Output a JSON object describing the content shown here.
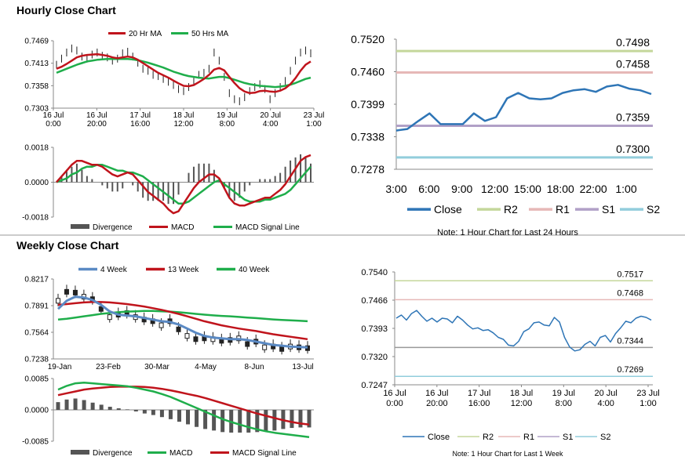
{
  "sections": {
    "hourly_title": "Hourly Close Chart",
    "weekly_title": "Weekly Close Chart"
  },
  "colors": {
    "red": "#c0141c",
    "green": "#1fae4b",
    "blue": "#2e75b6",
    "steelblue": "#5b8ac4",
    "gray": "#555555",
    "r2": "#c4d79b",
    "r1": "#e6b8b7",
    "s1": "#b1a0c7",
    "s2": "#92cddc"
  },
  "chart_data": [
    {
      "id": "hourly_price",
      "type": "line",
      "title": "",
      "ylim": [
        0.7303,
        0.7469
      ],
      "yticks": [
        "0.7469",
        "0.7413",
        "0.7358",
        "0.7303"
      ],
      "xticks": [
        [
          "16 Jul",
          "0:00"
        ],
        [
          "16 Jul",
          "20:00"
        ],
        [
          "17 Jul",
          "16:00"
        ],
        [
          "18 Jul",
          "12:00"
        ],
        [
          "19 Jul",
          "8:00"
        ],
        [
          "20 Jul",
          "4:00"
        ],
        [
          "23 Jul",
          "1:00"
        ]
      ],
      "legend": [
        "20 Hr MA",
        "50 Hrs MA"
      ],
      "series": [
        {
          "name": "Price",
          "values": [
            0.741,
            0.7425,
            0.744,
            0.745,
            0.7445,
            0.743,
            0.7425,
            0.7435,
            0.744,
            0.7432,
            0.7428,
            0.742,
            0.7425,
            0.7438,
            0.7442,
            0.743,
            0.7415,
            0.74,
            0.7395,
            0.7385,
            0.7382,
            0.7375,
            0.7368,
            0.736,
            0.735,
            0.7345,
            0.7355,
            0.737,
            0.7385,
            0.739,
            0.74,
            0.744,
            0.742,
            0.738,
            0.734,
            0.7325,
            0.732,
            0.733,
            0.7345,
            0.7355,
            0.7362,
            0.735,
            0.7325,
            0.734,
            0.7355,
            0.737,
            0.7395,
            0.742,
            0.744,
            0.7445,
            0.7438
          ]
        },
        {
          "name": "20 Hr MA",
          "values": [
            0.74,
            0.7405,
            0.7412,
            0.742,
            0.7428,
            0.7432,
            0.7434,
            0.7435,
            0.7436,
            0.7434,
            0.7432,
            0.7428,
            0.7426,
            0.7428,
            0.743,
            0.7428,
            0.7422,
            0.7414,
            0.7406,
            0.7398,
            0.739,
            0.7384,
            0.7378,
            0.7371,
            0.7364,
            0.7358,
            0.7357,
            0.736,
            0.7367,
            0.7375,
            0.7385,
            0.7398,
            0.7402,
            0.7396,
            0.738,
            0.7365,
            0.7352,
            0.7344,
            0.734,
            0.7341,
            0.7345,
            0.7346,
            0.7344,
            0.7343,
            0.7346,
            0.7352,
            0.7362,
            0.7377,
            0.7395,
            0.741,
            0.7418
          ]
        },
        {
          "name": "50 Hrs MA",
          "values": [
            0.739,
            0.7395,
            0.74,
            0.7405,
            0.741,
            0.7414,
            0.7418,
            0.742,
            0.7422,
            0.7423,
            0.7424,
            0.7424,
            0.7424,
            0.7424,
            0.7424,
            0.7423,
            0.7421,
            0.7418,
            0.7415,
            0.7411,
            0.7407,
            0.7403,
            0.7398,
            0.7393,
            0.7389,
            0.7385,
            0.7382,
            0.738,
            0.7378,
            0.7377,
            0.7376,
            0.7378,
            0.738,
            0.738,
            0.7377,
            0.7373,
            0.7369,
            0.7365,
            0.7362,
            0.736,
            0.7358,
            0.7357,
            0.7356,
            0.7355,
            0.7356,
            0.7358,
            0.7361,
            0.7365,
            0.737,
            0.7375,
            0.7378
          ]
        }
      ]
    },
    {
      "id": "hourly_macd",
      "type": "line",
      "ylim": [
        -0.0018,
        0.0018
      ],
      "yticks": [
        "0.0018",
        "0.0000",
        "-0.0018"
      ],
      "legend": [
        "Divergence",
        "MACD",
        "MACD Signal Line"
      ],
      "series": [
        {
          "name": "MACD",
          "values": [
            0.0,
            0.0003,
            0.0006,
            0.0009,
            0.0011,
            0.0011,
            0.001,
            0.0009,
            0.0009,
            0.0008,
            0.0006,
            0.0004,
            0.0003,
            0.0004,
            0.0005,
            0.0004,
            0.0001,
            -0.0002,
            -0.0005,
            -0.0007,
            -0.0009,
            -0.0011,
            -0.0014,
            -0.0016,
            -0.0015,
            -0.0011,
            -0.0007,
            -0.0003,
            0.0,
            0.0002,
            0.0004,
            0.0004,
            0.0002,
            -0.0003,
            -0.0008,
            -0.0011,
            -0.0012,
            -0.0012,
            -0.0011,
            -0.001,
            -0.0009,
            -0.0008,
            -0.0008,
            -0.0006,
            -0.0004,
            -0.0001,
            0.0003,
            0.0007,
            0.0011,
            0.0013,
            0.0014
          ]
        },
        {
          "name": "MACD Signal Line",
          "values": [
            0.0,
            0.0001,
            0.0002,
            0.0004,
            0.0005,
            0.0007,
            0.0008,
            0.0008,
            0.0009,
            0.0009,
            0.0008,
            0.0007,
            0.0006,
            0.0006,
            0.0005,
            0.0005,
            0.0004,
            0.0003,
            0.0001,
            -0.0001,
            -0.0003,
            -0.0005,
            -0.0007,
            -0.0009,
            -0.0011,
            -0.0011,
            -0.001,
            -0.0008,
            -0.0006,
            -0.0004,
            -0.0002,
            0.0,
            0.0001,
            -0.0001,
            -0.0003,
            -0.0005,
            -0.0007,
            -0.0009,
            -0.001,
            -0.001,
            -0.001,
            -0.0009,
            -0.0009,
            -0.0008,
            -0.0007,
            -0.0006,
            -0.0004,
            -0.0001,
            0.0002,
            0.0005,
            0.0008
          ]
        }
      ]
    },
    {
      "id": "hourly_24h",
      "type": "line",
      "ylim": [
        0.7278,
        0.752
      ],
      "yticks": [
        "0.7520",
        "0.7460",
        "0.7399",
        "0.7338",
        "0.7278"
      ],
      "xticks": [
        "3:00",
        "6:00",
        "9:00",
        "12:00",
        "15:00",
        "18:00",
        "22:00",
        "1:00"
      ],
      "levels": [
        {
          "name": "R2",
          "value": 0.7498,
          "label": "0.7498"
        },
        {
          "name": "R1",
          "value": 0.7458,
          "label": "0.7458"
        },
        {
          "name": "S1",
          "value": 0.7359,
          "label": "0.7359"
        },
        {
          "name": "S2",
          "value": 0.73,
          "label": "0.7300"
        }
      ],
      "series": [
        {
          "name": "Close",
          "values": [
            0.735,
            0.7353,
            0.7368,
            0.7382,
            0.7362,
            0.7362,
            0.7362,
            0.7382,
            0.7368,
            0.7375,
            0.741,
            0.742,
            0.741,
            0.7408,
            0.741,
            0.742,
            0.7425,
            0.7427,
            0.7422,
            0.7432,
            0.7435,
            0.7428,
            0.7425,
            0.7418
          ]
        }
      ],
      "legend": [
        "Close",
        "R2",
        "R1",
        "S1",
        "S2"
      ],
      "note": "Note: 1 Hour Chart for Last 24 Hours"
    },
    {
      "id": "weekly_price",
      "type": "line",
      "ylim": [
        0.7238,
        0.8217
      ],
      "yticks": [
        "0.8217",
        "0.7891",
        "0.7564",
        "0.7238"
      ],
      "xticks": [
        "19-Jan",
        "23-Feb",
        "30-Mar",
        "4-May",
        "8-Jun",
        "13-Jul"
      ],
      "legend": [
        "4 Week",
        "13 Week",
        "40 Week"
      ],
      "series": [
        {
          "name": "Price",
          "values": [
            0.795,
            0.806,
            0.805,
            0.8,
            0.797,
            0.785,
            0.775,
            0.778,
            0.78,
            0.775,
            0.772,
            0.77,
            0.765,
            0.77,
            0.76,
            0.752,
            0.748,
            0.749,
            0.748,
            0.746,
            0.747,
            0.749,
            0.742,
            0.745,
            0.738,
            0.739,
            0.736,
            0.739,
            0.738,
            0.737
          ]
        },
        {
          "name": "4 Week",
          "values": [
            0.785,
            0.795,
            0.8,
            0.799,
            0.796,
            0.79,
            0.782,
            0.778,
            0.777,
            0.776,
            0.774,
            0.772,
            0.77,
            0.769,
            0.766,
            0.761,
            0.756,
            0.752,
            0.75,
            0.749,
            0.748,
            0.748,
            0.747,
            0.745,
            0.743,
            0.741,
            0.74,
            0.739,
            0.7385,
            0.738
          ]
        },
        {
          "name": "13 Week",
          "values": [
            0.79,
            0.791,
            0.792,
            0.793,
            0.7935,
            0.7935,
            0.793,
            0.792,
            0.791,
            0.7895,
            0.788,
            0.786,
            0.784,
            0.7815,
            0.779,
            0.776,
            0.773,
            0.77,
            0.7675,
            0.765,
            0.763,
            0.761,
            0.7595,
            0.758,
            0.756,
            0.754,
            0.7525,
            0.751,
            0.7495,
            0.748
          ]
        },
        {
          "name": "40 Week",
          "values": [
            0.772,
            0.773,
            0.7745,
            0.776,
            0.7775,
            0.779,
            0.78,
            0.781,
            0.7818,
            0.7822,
            0.7825,
            0.7825,
            0.7822,
            0.7818,
            0.781,
            0.78,
            0.779,
            0.778,
            0.7772,
            0.7765,
            0.776,
            0.7752,
            0.7745,
            0.7738,
            0.773,
            0.7722,
            0.7715,
            0.771,
            0.7705,
            0.77
          ]
        }
      ]
    },
    {
      "id": "weekly_macd",
      "type": "line",
      "ylim": [
        -0.0085,
        0.0085
      ],
      "yticks": [
        "0.0085",
        "0.0000",
        "-0.0085"
      ],
      "legend": [
        "Divergence",
        "MACD",
        "MACD Signal Line"
      ],
      "series": [
        {
          "name": "MACD",
          "values": [
            0.0055,
            0.0065,
            0.0072,
            0.0074,
            0.0072,
            0.007,
            0.0068,
            0.0066,
            0.0064,
            0.006,
            0.0055,
            0.005,
            0.0043,
            0.0035,
            0.0025,
            0.0015,
            0.0005,
            -0.0005,
            -0.0015,
            -0.0025,
            -0.0033,
            -0.004,
            -0.0047,
            -0.0053,
            -0.0058,
            -0.0062,
            -0.0065,
            -0.0068,
            -0.0071,
            -0.0074
          ]
        },
        {
          "name": "MACD Signal Line",
          "values": [
            0.004,
            0.0045,
            0.005,
            0.0055,
            0.0058,
            0.006,
            0.0062,
            0.0063,
            0.0063,
            0.0063,
            0.0062,
            0.006,
            0.0057,
            0.0053,
            0.0048,
            0.0043,
            0.0038,
            0.0032,
            0.0025,
            0.0018,
            0.0011,
            0.0004,
            -0.0003,
            -0.001,
            -0.0016,
            -0.0022,
            -0.0028,
            -0.0033,
            -0.0037,
            -0.004
          ]
        }
      ]
    },
    {
      "id": "weekly_1w",
      "type": "line",
      "ylim": [
        0.7247,
        0.754
      ],
      "yticks": [
        "0.7540",
        "0.7466",
        "0.7393",
        "0.7320",
        "0.7247"
      ],
      "xticks": [
        [
          "16 Jul",
          "0:00"
        ],
        [
          "16 Jul",
          "20:00"
        ],
        [
          "17 Jul",
          "16:00"
        ],
        [
          "18 Jul",
          "12:00"
        ],
        [
          "19 Jul",
          "8:00"
        ],
        [
          "20 Jul",
          "4:00"
        ],
        [
          "23 Jul",
          "1:00"
        ]
      ],
      "levels": [
        {
          "name": "R2",
          "value": 0.7517,
          "label": "0.7517"
        },
        {
          "name": "R1",
          "value": 0.7468,
          "label": "0.7468"
        },
        {
          "name": "S1",
          "value": 0.7344,
          "label": "0.7344"
        },
        {
          "name": "S2",
          "value": 0.7269,
          "label": "0.7269"
        }
      ],
      "series": [
        {
          "name": "Close",
          "values": [
            0.742,
            0.7428,
            0.7415,
            0.7432,
            0.744,
            0.7425,
            0.7412,
            0.742,
            0.741,
            0.742,
            0.7418,
            0.7408,
            0.7425,
            0.7415,
            0.7402,
            0.7392,
            0.7395,
            0.7388,
            0.739,
            0.7382,
            0.737,
            0.7365,
            0.735,
            0.7348,
            0.736,
            0.7385,
            0.7392,
            0.7408,
            0.741,
            0.7402,
            0.74,
            0.7422,
            0.741,
            0.737,
            0.7345,
            0.7335,
            0.7338,
            0.7352,
            0.736,
            0.7348,
            0.737,
            0.7375,
            0.7358,
            0.738,
            0.7395,
            0.7412,
            0.7408,
            0.742,
            0.7425,
            0.7422,
            0.7415
          ]
        }
      ],
      "legend": [
        "Close",
        "R2",
        "R1",
        "S1",
        "S2"
      ],
      "note": "Note: 1 Hour Chart for Last 1 Week"
    }
  ]
}
